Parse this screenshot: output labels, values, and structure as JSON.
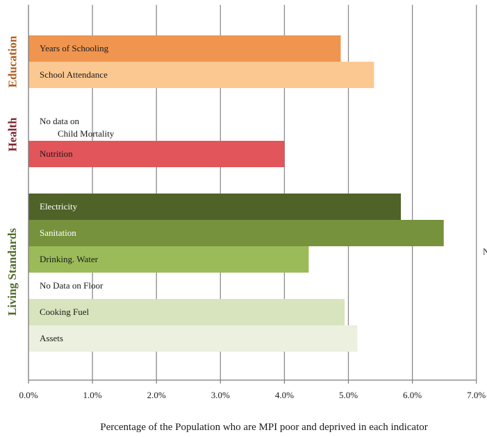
{
  "chart_data": {
    "type": "bar",
    "orientation": "horizontal",
    "xlabel": "Percentage of the Population who are MPI poor and deprived in each indicator",
    "xlim": [
      0,
      7
    ],
    "x_ticks": [
      "0.0%",
      "1.0%",
      "2.0%",
      "3.0%",
      "4.0%",
      "5.0%",
      "6.0%",
      "7.0%"
    ],
    "grid": "vertical",
    "groups": [
      {
        "name": "Education",
        "color": "#B05C1E"
      },
      {
        "name": "Health",
        "color": "#7B2430"
      },
      {
        "name": "Living Standards",
        "color": "#4F6A2A"
      }
    ],
    "categories": [
      {
        "label": "Years of Schooling",
        "value": 4.88,
        "color": "#F0954F",
        "group": "Education"
      },
      {
        "label": "School Attendance",
        "value": 5.4,
        "color": "#FCC891",
        "group": "Education"
      },
      {
        "label": "No data on Child Mortality",
        "value": null,
        "color": "",
        "group": "Health"
      },
      {
        "label": "Nutrition",
        "value": 4.0,
        "color": "#E2555B",
        "group": "Health"
      },
      {
        "label": "Electricity",
        "value": 5.82,
        "color": "#4F6228",
        "group": "Living Standards"
      },
      {
        "label": "Sanitation",
        "value": 6.49,
        "color": "#76923C",
        "group": "Living Standards"
      },
      {
        "label": "Drinking. Water",
        "value": 4.38,
        "color": "#9BBB59",
        "group": "Living Standards"
      },
      {
        "label": "No Data on Floor",
        "value": null,
        "color": "",
        "group": "Living Standards"
      },
      {
        "label": "Cooking Fuel",
        "value": 4.94,
        "color": "#D7E4BD",
        "group": "Living Standards"
      },
      {
        "label": "Assets",
        "value": 5.14,
        "color": "#EBF1DE",
        "group": "Living Standards"
      }
    ]
  },
  "edge_text": "N"
}
